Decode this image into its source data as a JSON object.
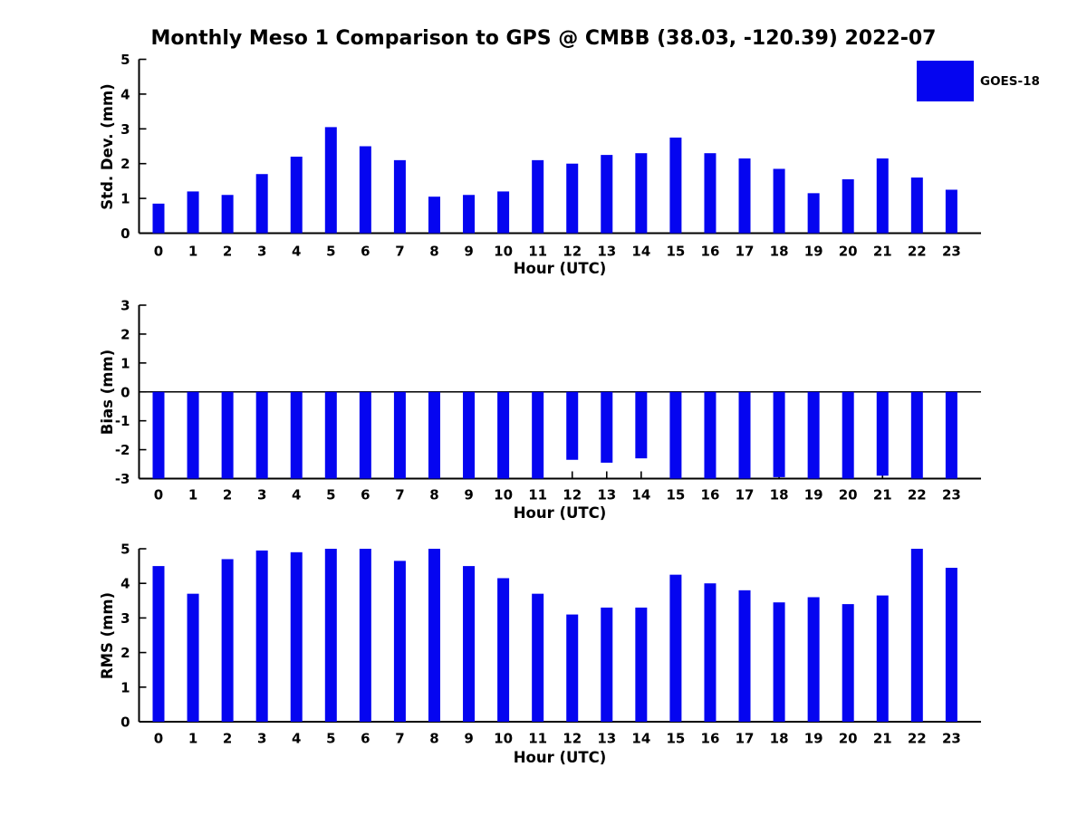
{
  "title": "Monthly Meso 1 Comparison to GPS @ CMBB (38.03, -120.39) 2022-07",
  "legend": {
    "label": "GOES-18",
    "color": "#0505f0"
  },
  "colors": {
    "bar": "#0505f0",
    "axis": "#000000",
    "text": "#000000",
    "background": "#ffffff"
  },
  "chart_data": {
    "type": "bar",
    "title": "Monthly Meso 1 Comparison to GPS @ CMBB (38.03, -120.39) 2022-07",
    "xlabel": "Hour (UTC)",
    "categories": [
      "0",
      "1",
      "2",
      "3",
      "4",
      "5",
      "6",
      "7",
      "8",
      "9",
      "10",
      "11",
      "12",
      "13",
      "14",
      "15",
      "16",
      "17",
      "18",
      "19",
      "20",
      "21",
      "22",
      "23"
    ],
    "series_name": "GOES-18",
    "legend_position": "upper right",
    "grid": false,
    "charts": [
      {
        "id": "stddev",
        "ylabel": "Std. Dev. (mm)",
        "ylim": [
          0,
          5
        ],
        "yticks": [
          "0",
          "1",
          "2",
          "3",
          "4",
          "5"
        ],
        "values": [
          0.85,
          1.2,
          1.1,
          1.7,
          2.2,
          3.05,
          2.5,
          2.1,
          1.05,
          1.1,
          1.2,
          2.1,
          2.0,
          2.25,
          2.3,
          2.75,
          2.3,
          2.15,
          1.85,
          1.15,
          1.55,
          2.15,
          1.6,
          1.25
        ]
      },
      {
        "id": "bias",
        "ylabel": "Bias (mm)",
        "ylim": [
          -3,
          3
        ],
        "yticks": [
          "3",
          "2",
          "1",
          "0",
          "-1",
          "-2",
          "-3"
        ],
        "baseline": 0,
        "values": [
          -3,
          -3,
          -3,
          -3,
          -3,
          -3,
          -3,
          -3,
          -3,
          -3,
          -3,
          -3,
          -2.35,
          -2.45,
          -2.3,
          -3,
          -3,
          -3,
          -2.95,
          -3,
          -3,
          -2.9,
          -3,
          -3
        ]
      },
      {
        "id": "rms",
        "ylabel": "RMS (mm)",
        "ylim": [
          0,
          5
        ],
        "yticks": [
          "0",
          "1",
          "2",
          "3",
          "4",
          "5"
        ],
        "values": [
          4.5,
          3.7,
          4.7,
          4.95,
          4.9,
          5.0,
          5.0,
          4.65,
          5.0,
          4.5,
          4.15,
          3.7,
          3.1,
          3.3,
          3.3,
          4.25,
          4.0,
          3.8,
          3.45,
          3.6,
          3.4,
          3.65,
          5.0,
          4.45
        ]
      }
    ]
  }
}
